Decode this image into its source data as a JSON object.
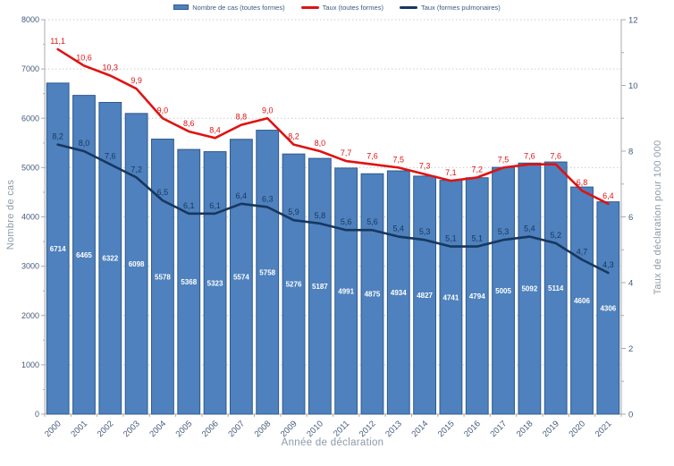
{
  "legend": {
    "items": [
      {
        "label": "Nombre de cas (toutes formes)",
        "swatch": "bar",
        "color": "#4E81BD"
      },
      {
        "label": "Taux (toutes formes)",
        "swatch": "line",
        "color": "#E01212"
      },
      {
        "label": "Taux (formes pulmonaires)",
        "swatch": "line",
        "color": "#17375E"
      }
    ]
  },
  "chart_data": {
    "type": "bar",
    "title": "",
    "categories": [
      "2000",
      "2001",
      "2002",
      "2003",
      "2004",
      "2005",
      "2006",
      "2007",
      "2008",
      "2009",
      "2010",
      "2011",
      "2012",
      "2013",
      "2014",
      "2015",
      "2016",
      "2017",
      "2018",
      "2019",
      "2020",
      "2021"
    ],
    "series": [
      {
        "name": "Nombre de cas (toutes formes)",
        "type": "bar",
        "axis": "left",
        "color": "#4E81BD",
        "border_color": "#2E5A8F",
        "label_color": "#FFFFFF",
        "values": [
          6714,
          6465,
          6322,
          6098,
          5578,
          5368,
          5323,
          5574,
          5758,
          5276,
          5187,
          4991,
          4875,
          4934,
          4827,
          4741,
          4794,
          5005,
          5092,
          5114,
          4606,
          4306
        ]
      },
      {
        "name": "Taux (toutes formes)",
        "type": "line",
        "axis": "right",
        "color": "#E01212",
        "values": [
          11.1,
          10.6,
          10.3,
          9.9,
          9.0,
          8.6,
          8.4,
          8.8,
          9.0,
          8.2,
          8.0,
          7.7,
          7.6,
          7.5,
          7.3,
          7.1,
          7.2,
          7.5,
          7.6,
          7.6,
          6.8,
          6.4
        ]
      },
      {
        "name": "Taux (formes pulmonaires)",
        "type": "line",
        "axis": "right",
        "color": "#17375E",
        "values": [
          8.2,
          8.0,
          7.6,
          7.2,
          6.5,
          6.1,
          6.1,
          6.4,
          6.3,
          5.9,
          5.8,
          5.6,
          5.6,
          5.4,
          5.3,
          5.1,
          5.1,
          5.3,
          5.4,
          5.2,
          4.7,
          4.3
        ]
      }
    ],
    "xlabel": "Année de déclaration",
    "left_axis": {
      "title": "Nombre de cas",
      "min": 0,
      "max": 8000,
      "step": 1000,
      "minor_step": 500,
      "ticks": [
        "0",
        "1000",
        "2000",
        "3000",
        "4000",
        "5000",
        "6000",
        "7000",
        "8000"
      ]
    },
    "right_axis": {
      "title": "Taux de déclaration pour 100 000",
      "min": 0,
      "max": 12,
      "step": 2,
      "minor_step": 1,
      "ticks": [
        "0",
        "2",
        "4",
        "6",
        "8",
        "10",
        "12"
      ]
    },
    "grid": "horizontal-dotted",
    "legend_position": "top",
    "decimal_separator": ","
  },
  "colors": {
    "tick_label": "#455A7D",
    "axis_title": "#8C9AA8",
    "axis_line": "#ABABAB",
    "gridline": "#C6C6C6",
    "background": "#FFFFFF"
  }
}
